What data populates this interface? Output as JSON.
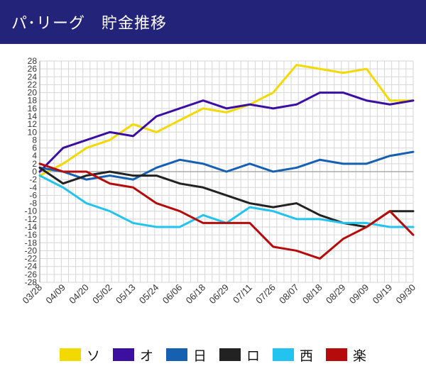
{
  "header": {
    "title": "パ･リーグ　貯金推移",
    "background": "#23237a"
  },
  "chart_data": {
    "type": "line",
    "title": "パ･リーグ　貯金推移",
    "xlabel": "",
    "ylabel": "",
    "ylim": [
      -28,
      28
    ],
    "yticks": [
      28,
      26,
      24,
      22,
      20,
      18,
      16,
      14,
      12,
      10,
      8,
      6,
      4,
      2,
      0,
      -2,
      -4,
      -6,
      -8,
      -10,
      -12,
      -14,
      -16,
      -18,
      -20,
      -22,
      -24,
      -26,
      -28
    ],
    "categories": [
      "03/28",
      "04/09",
      "04/20",
      "05/02",
      "05/13",
      "05/24",
      "06/06",
      "06/18",
      "06/29",
      "07/11",
      "07/26",
      "08/07",
      "08/18",
      "08/29",
      "09/09",
      "09/19",
      "09/30"
    ],
    "grid": true,
    "series": [
      {
        "name": "ソ",
        "color": "#f2d900",
        "values": [
          -1,
          2,
          6,
          8,
          12,
          10,
          13,
          16,
          15,
          17,
          20,
          27,
          26,
          25,
          26,
          18,
          18
        ]
      },
      {
        "name": "オ",
        "color": "#3b0fa0",
        "values": [
          0,
          6,
          8,
          10,
          9,
          14,
          16,
          18,
          16,
          17,
          16,
          17,
          20,
          20,
          18,
          17,
          18
        ]
      },
      {
        "name": "日",
        "color": "#1560b0",
        "values": [
          1,
          0,
          -2,
          -1,
          -2,
          1,
          3,
          2,
          0,
          2,
          0,
          1,
          3,
          2,
          2,
          4,
          5
        ]
      },
      {
        "name": "ロ",
        "color": "#222222",
        "values": [
          1,
          -3,
          -1,
          0,
          -1,
          -1,
          -3,
          -4,
          -6,
          -8,
          -9,
          -8,
          -11,
          -13,
          -14,
          -10,
          -10
        ]
      },
      {
        "name": "西",
        "color": "#22c4ef",
        "values": [
          -1,
          -4,
          -8,
          -10,
          -13,
          -14,
          -14,
          -11,
          -13,
          -9,
          -10,
          -12,
          -12,
          -13,
          -13,
          -14,
          -14
        ]
      },
      {
        "name": "楽",
        "color": "#b50b0b",
        "values": [
          2,
          0,
          0,
          -3,
          -4,
          -8,
          -10,
          -13,
          -13,
          -13,
          -19,
          -20,
          -22,
          -17,
          -14,
          -10,
          -16
        ]
      }
    ]
  },
  "legend": {
    "items": [
      {
        "label": "ソ",
        "color": "#f2d900"
      },
      {
        "label": "オ",
        "color": "#3b0fa0"
      },
      {
        "label": "日",
        "color": "#1560b0"
      },
      {
        "label": "ロ",
        "color": "#222222"
      },
      {
        "label": "西",
        "color": "#22c4ef"
      },
      {
        "label": "楽",
        "color": "#b50b0b"
      }
    ]
  }
}
